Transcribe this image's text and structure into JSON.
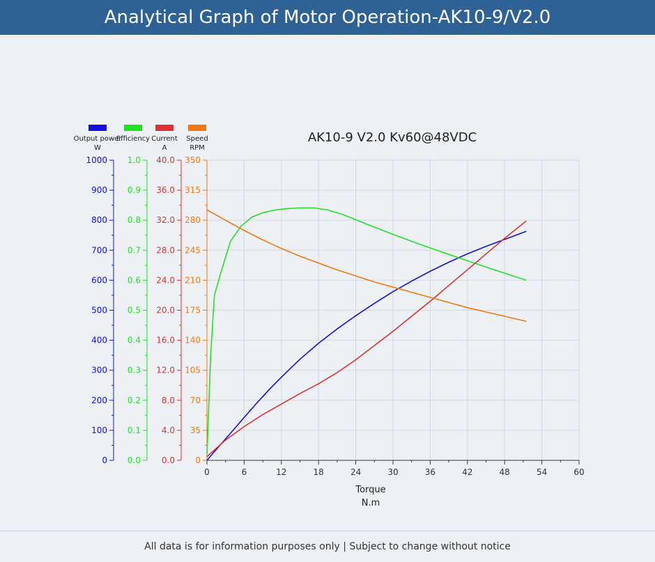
{
  "header": {
    "title": "Analytical Graph of Motor Operation-AK10-9/V2.0"
  },
  "footer": {
    "note": "All data is for information purposes only | Subject to change without notice"
  },
  "chart_data": {
    "type": "line",
    "title": "AK10-9 V2.0 Kv60@48VDC",
    "xlabel": "Torque",
    "xunit": "N.m",
    "xlim": [
      0,
      60
    ],
    "xticks": [
      0,
      6,
      12,
      18,
      24,
      30,
      36,
      42,
      48,
      54,
      60
    ],
    "grid": true,
    "series": [
      {
        "key": "power",
        "name": "Output power",
        "unit": "W",
        "color": "#1010e0",
        "ylim": [
          0,
          1000
        ],
        "ticks": [
          0,
          100,
          200,
          300,
          400,
          500,
          600,
          700,
          800,
          900,
          1000
        ],
        "decimals": 0,
        "x": [
          0,
          2,
          4,
          6,
          8,
          10,
          12,
          15,
          18,
          21,
          24,
          27,
          30,
          33,
          36,
          39,
          42,
          45,
          48,
          51.5
        ],
        "y": [
          0,
          48,
          95,
          143,
          190,
          235,
          277,
          337,
          390,
          438,
          482,
          523,
          562,
          597,
          630,
          660,
          688,
          713,
          736,
          763
        ]
      },
      {
        "key": "eff",
        "name": "Efficiency",
        "unit": "",
        "color": "#22e022",
        "ylim": [
          0,
          1.0
        ],
        "ticks": [
          0.0,
          0.1,
          0.2,
          0.3,
          0.4,
          0.5,
          0.6,
          0.7,
          0.8,
          0.9,
          1.0
        ],
        "decimals": 1,
        "x": [
          0,
          0.6,
          1.2,
          2.3,
          3.8,
          5.5,
          7.2,
          9,
          11,
          13,
          15,
          17.3,
          19.5,
          22,
          26,
          30,
          34,
          38,
          42,
          46,
          51.5
        ],
        "y": [
          0.02,
          0.35,
          0.55,
          0.63,
          0.73,
          0.78,
          0.81,
          0.825,
          0.834,
          0.839,
          0.841,
          0.841,
          0.834,
          0.818,
          0.785,
          0.753,
          0.722,
          0.693,
          0.665,
          0.637,
          0.6
        ]
      },
      {
        "key": "current",
        "name": "Current",
        "unit": "A",
        "color": "#e03030",
        "ylim": [
          0,
          40
        ],
        "ticks": [
          0.0,
          4.0,
          8.0,
          12.0,
          16.0,
          20.0,
          24.0,
          28.0,
          32.0,
          36.0,
          40.0
        ],
        "decimals": 1,
        "x": [
          0,
          3,
          6,
          9,
          12,
          15,
          18,
          21,
          24,
          27,
          30,
          33,
          36,
          39,
          42,
          45,
          48,
          51.5
        ],
        "y": [
          0.5,
          2.7,
          4.5,
          6.1,
          7.5,
          8.9,
          10.2,
          11.7,
          13.4,
          15.3,
          17.2,
          19.2,
          21.2,
          23.3,
          25.4,
          27.5,
          29.6,
          31.9
        ]
      },
      {
        "key": "speed",
        "name": "Speed",
        "unit": "RPM",
        "color": "#f07810",
        "ylim": [
          0,
          350
        ],
        "ticks": [
          0,
          35,
          70,
          105,
          140,
          175,
          210,
          245,
          280,
          315,
          350
        ],
        "decimals": 0,
        "x": [
          0,
          3,
          6,
          9,
          12,
          15,
          18,
          21,
          24,
          27,
          30,
          33,
          36,
          39,
          42,
          45,
          48,
          51.5
        ],
        "y": [
          292,
          280,
          268,
          257,
          247,
          238,
          230,
          222,
          215,
          208,
          202,
          196,
          190,
          184,
          178,
          173,
          168,
          162
        ]
      }
    ]
  }
}
